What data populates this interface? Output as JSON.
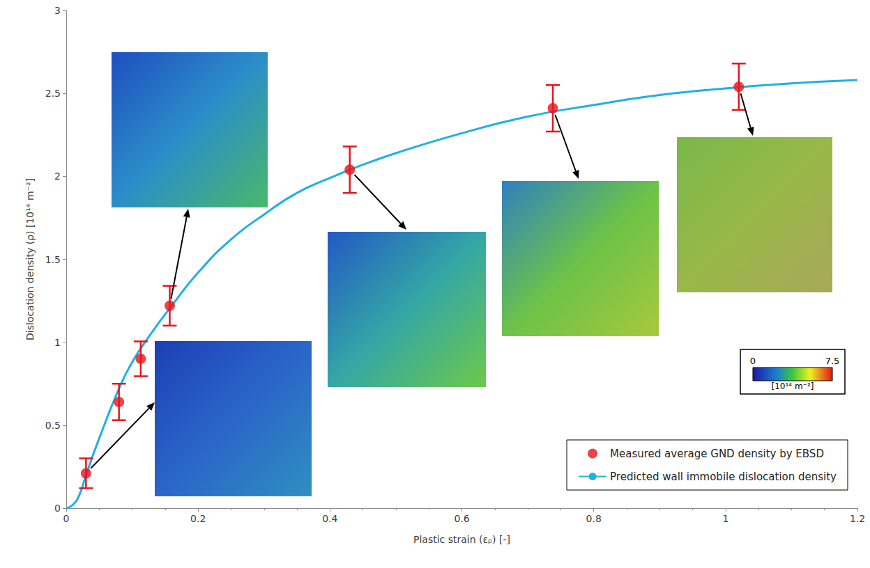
{
  "chart_data": {
    "type": "scatter",
    "x_label": "Plastic strain (εₚ) [-]",
    "y_label": "Dislocation density (ρ) [10¹⁴ m⁻²]",
    "xlim": [
      0,
      1.2
    ],
    "xticks": [
      0,
      0.2,
      0.4,
      0.6,
      0.8,
      1,
      1.2
    ],
    "ylim": [
      0,
      3
    ],
    "yticks": [
      0,
      0.5,
      1,
      1.5,
      2,
      2.5,
      3
    ],
    "grid": false,
    "legend": "lower right",
    "series": [
      {
        "name": "Measured average GND density by EBSD",
        "type": "scatter",
        "color": "#e8141c",
        "marker": "circle",
        "x": [
          0.03,
          0.08,
          0.113,
          0.157,
          0.43,
          0.738,
          1.02
        ],
        "values": [
          0.21,
          0.64,
          0.9,
          1.22,
          2.04,
          2.41,
          2.54
        ],
        "errors": [
          0.09,
          0.11,
          0.105,
          0.12,
          0.14,
          0.14,
          0.14
        ]
      },
      {
        "name": "Predicted wall immobile dislocation density",
        "type": "line",
        "color": "#1fb0e6",
        "line_style": "solid",
        "x": [
          0,
          0.01,
          0.02,
          0.03,
          0.05,
          0.08,
          0.1,
          0.13,
          0.16,
          0.2,
          0.25,
          0.3,
          0.35,
          0.4,
          0.45,
          0.5,
          0.6,
          0.7,
          0.8,
          0.9,
          1,
          1.1,
          1.2
        ],
        "values": [
          0,
          0.02,
          0.08,
          0.2,
          0.42,
          0.72,
          0.88,
          1.06,
          1.22,
          1.42,
          1.62,
          1.77,
          1.9,
          1.99,
          2.07,
          2.14,
          2.26,
          2.36,
          2.43,
          2.49,
          2.53,
          2.56,
          2.58
        ]
      }
    ],
    "colorbar": {
      "range": [
        0,
        7.5
      ],
      "ticks": [
        0,
        7.5
      ],
      "label": "[10¹⁴ m⁻²]"
    }
  }
}
